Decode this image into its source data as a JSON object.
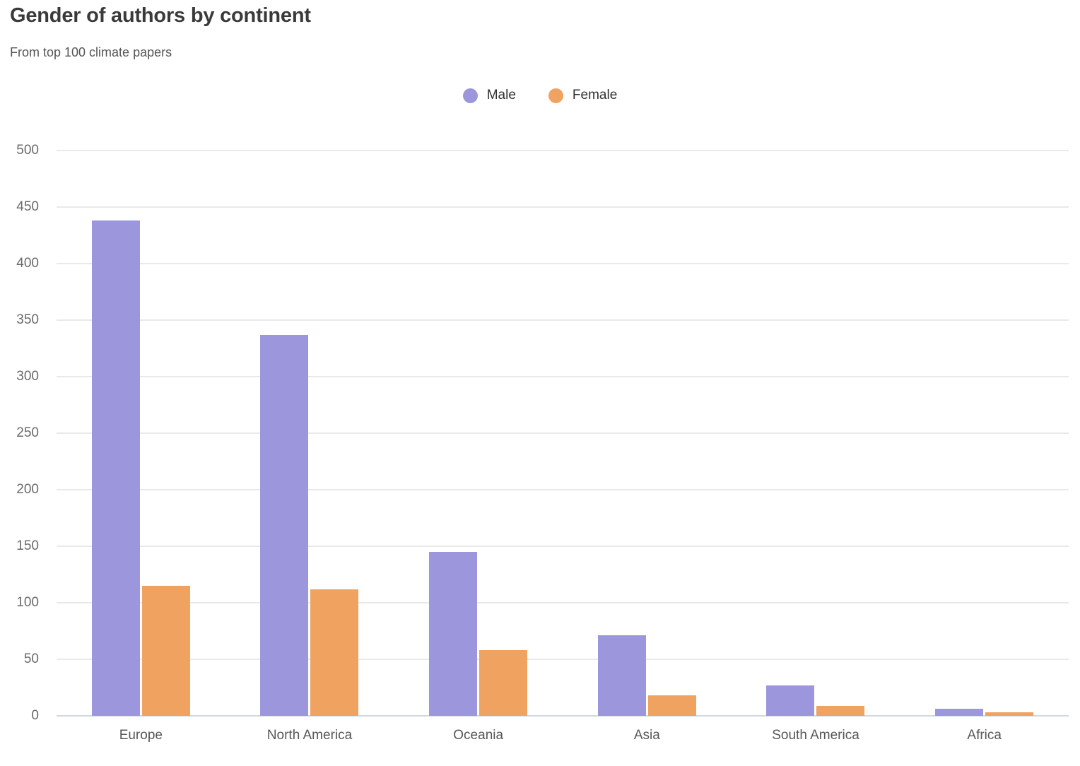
{
  "header": {
    "title": "Gender of authors by continent",
    "subtitle": "From top 100 climate papers"
  },
  "colors": {
    "male": "#9c96dc",
    "female": "#f0a261",
    "grid_line": "#e9e9e9",
    "baseline": "#cfd9e4"
  },
  "chart_data": {
    "type": "bar",
    "title": "Gender of authors by continent",
    "subtitle": "From top 100 climate papers",
    "categories": [
      "Europe",
      "North America",
      "Oceania",
      "Asia",
      "South America",
      "Africa"
    ],
    "series": [
      {
        "name": "Male",
        "color": "#9c96dc",
        "values": [
          438,
          337,
          145,
          71,
          27,
          6
        ]
      },
      {
        "name": "Female",
        "color": "#f0a261",
        "values": [
          115,
          112,
          58,
          18,
          9,
          3
        ]
      }
    ],
    "xlabel": "",
    "ylabel": "",
    "ylim": [
      0,
      500
    ],
    "yticks": [
      0,
      50,
      100,
      150,
      200,
      250,
      300,
      350,
      400,
      450,
      500
    ],
    "grid": "horizontal",
    "legend_position": "top-center",
    "legend_marker": "circle"
  }
}
